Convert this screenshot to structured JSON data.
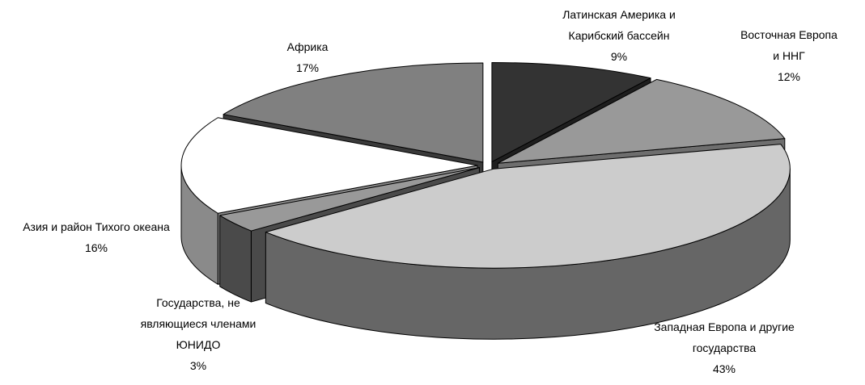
{
  "chart_data": {
    "type": "pie",
    "style": "3d-exploded",
    "slices": [
      {
        "label": "Латинская Америка и Карибский бассейн",
        "label_lines": [
          "Латинская Америка и",
          "Карибский бассейн"
        ],
        "value": 9,
        "value_label": "9%",
        "color": "#333333",
        "side_color": "#1e1e1e"
      },
      {
        "label": "Восточная Европа и ННГ",
        "label_lines": [
          "Восточная Европа",
          "и ННГ"
        ],
        "value": 12,
        "value_label": "12%",
        "color": "#999999",
        "side_color": "#6e6e6e"
      },
      {
        "label": "Западная Европа и другие государства",
        "label_lines": [
          "Западная Европа и другие",
          "государства"
        ],
        "value": 43,
        "value_label": "43%",
        "color": "#cccccc",
        "side_color": "#666666"
      },
      {
        "label": "Государства, не являющиеся членами ЮНИДО",
        "label_lines": [
          "Государства, не",
          "являющиеся членами",
          "ЮНИДО"
        ],
        "value": 3,
        "value_label": "3%",
        "color": "#999999",
        "side_color": "#4a4a4a"
      },
      {
        "label": "Азия и район Тихого океана",
        "label_lines": [
          "Азия и район Тихого океана"
        ],
        "value": 16,
        "value_label": "16%",
        "color": "#ffffff",
        "side_color": "#8a8a8a"
      },
      {
        "label": "Африка",
        "label_lines": [
          "Африка"
        ],
        "value": 17,
        "value_label": "17%",
        "color": "#808080",
        "side_color": "#3a3a3a"
      }
    ],
    "legend": "none"
  }
}
